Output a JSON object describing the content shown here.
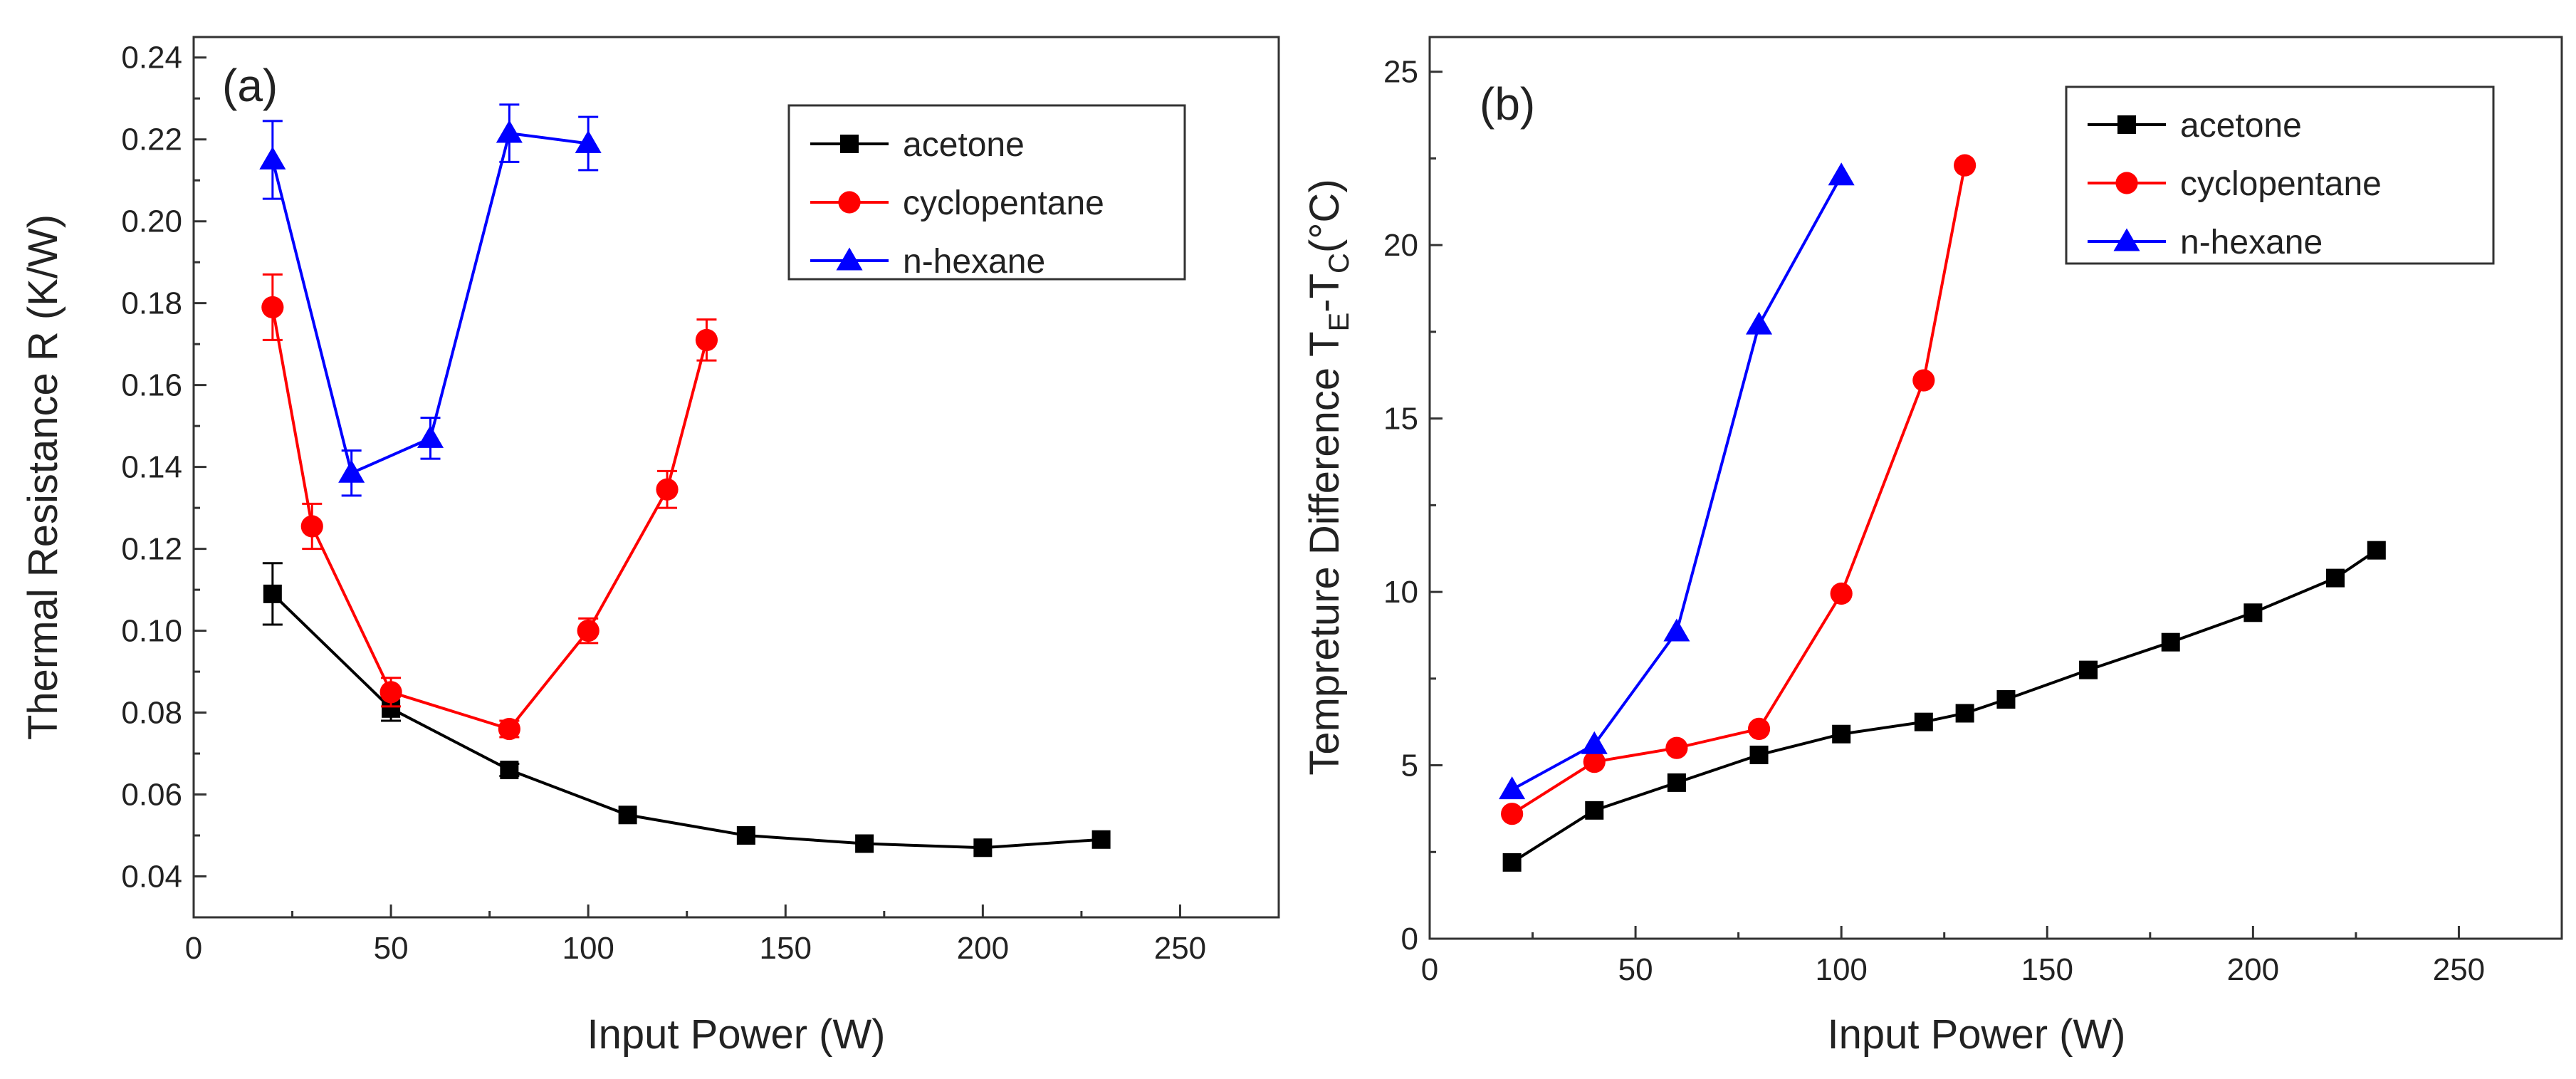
{
  "colors": {
    "acetone": "#000000",
    "cyclopentane": "#ff0000",
    "n_hexane": "#0000ff"
  },
  "chart_data": [
    {
      "type": "line",
      "panel_label": "(a)",
      "xlabel": "Input Power (W)",
      "ylabel": "Thermal Resistance R (K/W)",
      "xlim": [
        0,
        275
      ],
      "ylim": [
        0.03,
        0.245
      ],
      "xticks": [
        0,
        50,
        100,
        150,
        200,
        250
      ],
      "yticks": [
        0.04,
        0.06,
        0.08,
        0.1,
        0.12,
        0.14,
        0.16,
        0.18,
        0.2,
        0.22,
        0.24
      ],
      "ytick_labels": [
        "0.04",
        "0.06",
        "0.08",
        "0.10",
        "0.12",
        "0.14",
        "0.16",
        "0.18",
        "0.20",
        "0.22",
        "0.24"
      ],
      "legend_position": "top-right",
      "series": [
        {
          "name": "acetone",
          "color_key": "acetone",
          "marker": "square",
          "x": [
            20,
            50,
            80,
            110,
            140,
            170,
            200,
            230
          ],
          "y": [
            0.109,
            0.081,
            0.066,
            0.055,
            0.05,
            0.048,
            0.047,
            0.049
          ],
          "err": [
            0.0075,
            0.003,
            0.0015,
            0,
            0,
            0,
            0,
            0
          ]
        },
        {
          "name": "cyclopentane",
          "color_key": "cyclopentane",
          "marker": "circle",
          "x": [
            20,
            30,
            50,
            80,
            100,
            120,
            130
          ],
          "y": [
            0.179,
            0.1255,
            0.085,
            0.076,
            0.1,
            0.1345,
            0.171
          ],
          "err": [
            0.008,
            0.0055,
            0.0035,
            0.002,
            0.003,
            0.0045,
            0.005
          ]
        },
        {
          "name": "n-hexane",
          "color_key": "n_hexane",
          "marker": "triangle",
          "x": [
            20,
            40,
            60,
            80,
            100
          ],
          "y": [
            0.215,
            0.1385,
            0.147,
            0.2215,
            0.219
          ],
          "err": [
            0.0095,
            0.0055,
            0.005,
            0.007,
            0.0065
          ]
        }
      ]
    },
    {
      "type": "line",
      "panel_label": "(b)",
      "xlabel": "Input Power (W)",
      "ylabel_main": "Tempreture Difference T",
      "ylabel_sub1": "E",
      "ylabel_mid": "-T",
      "ylabel_sub2": "C",
      "ylabel_unit": "(°C)",
      "xlim": [
        0,
        275
      ],
      "ylim": [
        0,
        26
      ],
      "xticks": [
        0,
        50,
        100,
        150,
        200,
        250
      ],
      "yticks": [
        0,
        5,
        10,
        15,
        20,
        25
      ],
      "ytick_labels": [
        "0",
        "5",
        "10",
        "15",
        "20",
        "25"
      ],
      "legend_position": "top-right",
      "series": [
        {
          "name": "acetone",
          "color_key": "acetone",
          "marker": "square",
          "x": [
            20,
            40,
            60,
            80,
            100,
            120,
            130,
            140,
            160,
            180,
            200,
            220,
            230
          ],
          "y": [
            2.2,
            3.7,
            4.5,
            5.3,
            5.9,
            6.25,
            6.5,
            6.9,
            7.75,
            8.55,
            9.4,
            10.4,
            11.2
          ]
        },
        {
          "name": "cyclopentane",
          "color_key": "cyclopentane",
          "marker": "circle",
          "x": [
            20,
            40,
            60,
            80,
            100,
            120,
            130
          ],
          "y": [
            3.6,
            5.1,
            5.5,
            6.05,
            9.95,
            16.1,
            22.3
          ]
        },
        {
          "name": "n-hexane",
          "color_key": "n_hexane",
          "marker": "triangle",
          "x": [
            20,
            40,
            60,
            80,
            100
          ],
          "y": [
            4.3,
            5.6,
            8.85,
            17.7,
            22.0
          ]
        }
      ]
    }
  ]
}
